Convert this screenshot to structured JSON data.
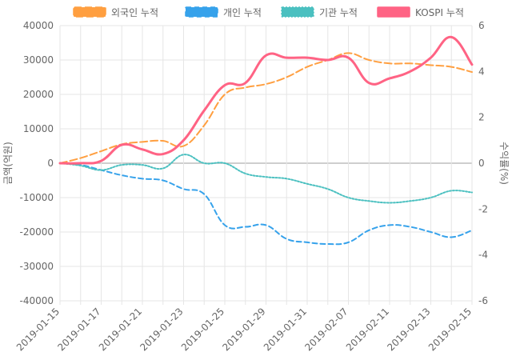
{
  "chart_data": {
    "type": "line",
    "xlabel": "",
    "ylabel_left": "금액(억원)",
    "ylabel_right": "수익률(%)",
    "x": [
      "2019-01-15",
      "2019-01-16",
      "2019-01-17",
      "2019-01-18",
      "2019-01-21",
      "2019-01-22",
      "2019-01-23",
      "2019-01-24",
      "2019-01-25",
      "2019-01-28",
      "2019-01-29",
      "2019-01-30",
      "2019-01-31",
      "2019-02-01",
      "2019-02-07",
      "2019-02-08",
      "2019-02-11",
      "2019-02-12",
      "2019-02-13",
      "2019-02-14",
      "2019-02-15"
    ],
    "x_tick_labels": [
      "2019-01-15",
      "2019-01-17",
      "2019-01-21",
      "2019-01-23",
      "2019-01-25",
      "2019-01-29",
      "2019-01-31",
      "2019-02-07",
      "2019-02-11",
      "2019-02-13",
      "2019-02-15"
    ],
    "ylim_left": [
      -40000,
      40000
    ],
    "yticks_left": [
      40000,
      30000,
      20000,
      10000,
      0,
      -10000,
      -20000,
      -30000,
      -40000
    ],
    "ylim_right": [
      -6,
      6
    ],
    "yticks_right": [
      6,
      4,
      2,
      0,
      -2,
      -4,
      -6
    ],
    "grid": true,
    "legend_position": "top",
    "series": [
      {
        "name": "외국인 누적",
        "axis": "left",
        "color": "#ff9f40",
        "dash": "9,4",
        "width": 2,
        "values": [
          0,
          1500,
          3500,
          5500,
          6200,
          6500,
          5000,
          11000,
          20000,
          22000,
          23000,
          25000,
          28000,
          30000,
          32000,
          30000,
          29000,
          29000,
          28500,
          28000,
          26500
        ]
      },
      {
        "name": "개인 누적",
        "axis": "left",
        "color": "#36a2eb",
        "dash": "6,4",
        "width": 2,
        "values": [
          0,
          -500,
          -2000,
          -3500,
          -4500,
          -5000,
          -7500,
          -9000,
          -18000,
          -18500,
          -18000,
          -22000,
          -23000,
          -23500,
          -23000,
          -19500,
          -18000,
          -18500,
          -20000,
          -21500,
          -19500
        ]
      },
      {
        "name": "기관 누적",
        "axis": "left",
        "color": "#4bc0c0",
        "dash": "2,2",
        "width": 2,
        "values": [
          0,
          -700,
          -2000,
          -500,
          -500,
          -1500,
          2500,
          0,
          0,
          -3000,
          -4000,
          -4500,
          -6000,
          -7500,
          -10000,
          -11000,
          -11500,
          -11000,
          -10000,
          -8000,
          -8500
        ]
      },
      {
        "name": "KOSPI 누적",
        "axis": "right",
        "color": "#ff6384",
        "dash": "",
        "width": 3,
        "values": [
          0,
          0,
          0.1,
          0.8,
          0.6,
          0.4,
          1.0,
          2.3,
          3.4,
          3.5,
          4.7,
          4.6,
          4.6,
          4.5,
          4.6,
          3.5,
          3.7,
          4.0,
          4.6,
          5.5,
          4.3
        ]
      }
    ]
  }
}
